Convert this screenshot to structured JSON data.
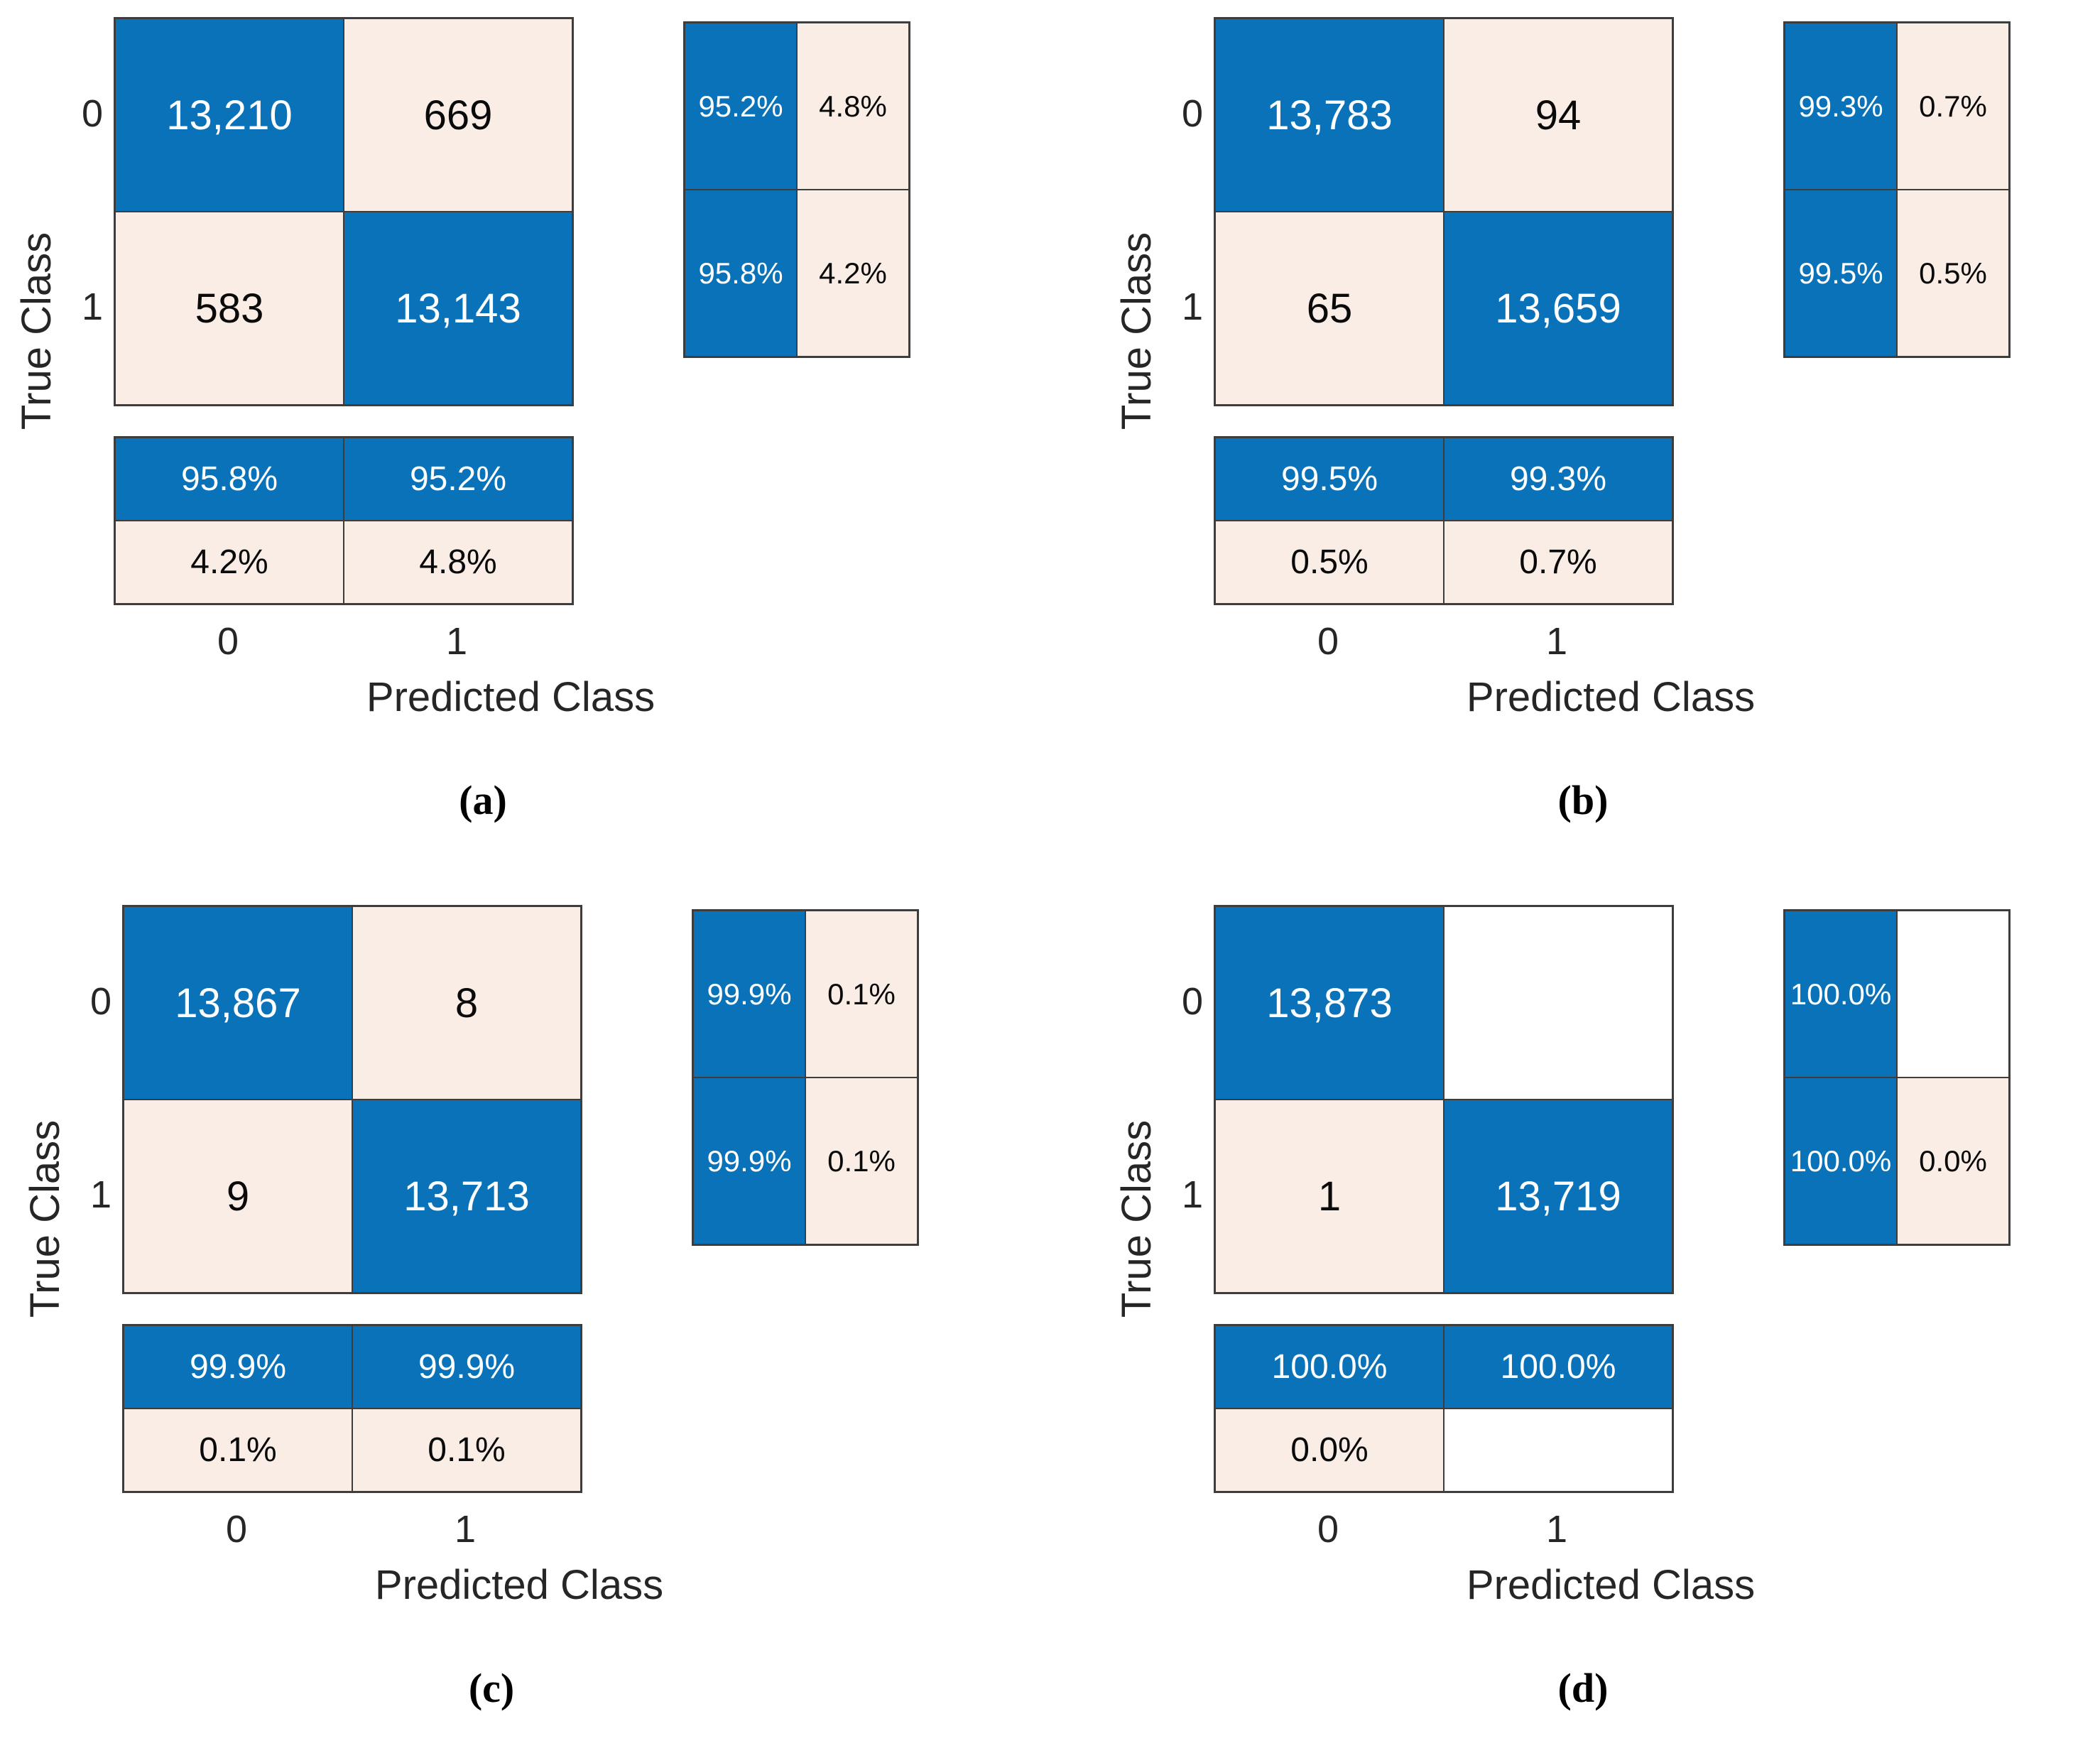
{
  "colors": {
    "diagonal_blue": "#0972b8",
    "offdiagonal_cream": "#faede6",
    "zero_cell_white": "#ffffff",
    "grid_border": "#3d3d3d",
    "label_text": "#262626"
  },
  "axis": {
    "x_label": "Predicted Class",
    "y_label": "True Class",
    "tick0": "0",
    "tick1": "1"
  },
  "panels": {
    "a": {
      "caption": "(a)",
      "matrix": [
        [
          {
            "v": "13,210",
            "c": "blue"
          },
          {
            "v": "669",
            "c": "light"
          }
        ],
        [
          {
            "v": "583",
            "c": "light"
          },
          {
            "v": "13,143",
            "c": "blue"
          }
        ]
      ],
      "rsum": [
        [
          {
            "v": "95.2%",
            "c": "blue"
          },
          {
            "v": "4.8%",
            "c": "light"
          }
        ],
        [
          {
            "v": "95.8%",
            "c": "blue"
          },
          {
            "v": "4.2%",
            "c": "light"
          }
        ]
      ],
      "csum": [
        [
          {
            "v": "95.8%",
            "c": "blue"
          },
          {
            "v": "95.2%",
            "c": "blue"
          }
        ],
        [
          {
            "v": "4.2%",
            "c": "light"
          },
          {
            "v": "4.8%",
            "c": "light"
          }
        ]
      ]
    },
    "b": {
      "caption": "(b)",
      "matrix": [
        [
          {
            "v": "13,783",
            "c": "blue"
          },
          {
            "v": "94",
            "c": "light"
          }
        ],
        [
          {
            "v": "65",
            "c": "light"
          },
          {
            "v": "13,659",
            "c": "blue"
          }
        ]
      ],
      "rsum": [
        [
          {
            "v": "99.3%",
            "c": "blue"
          },
          {
            "v": "0.7%",
            "c": "light"
          }
        ],
        [
          {
            "v": "99.5%",
            "c": "blue"
          },
          {
            "v": "0.5%",
            "c": "light"
          }
        ]
      ],
      "csum": [
        [
          {
            "v": "99.5%",
            "c": "blue"
          },
          {
            "v": "99.3%",
            "c": "blue"
          }
        ],
        [
          {
            "v": "0.5%",
            "c": "light"
          },
          {
            "v": "0.7%",
            "c": "light"
          }
        ]
      ]
    },
    "c": {
      "caption": "(c)",
      "matrix": [
        [
          {
            "v": "13,867",
            "c": "blue"
          },
          {
            "v": "8",
            "c": "light"
          }
        ],
        [
          {
            "v": "9",
            "c": "light"
          },
          {
            "v": "13,713",
            "c": "blue"
          }
        ]
      ],
      "rsum": [
        [
          {
            "v": "99.9%",
            "c": "blue"
          },
          {
            "v": "0.1%",
            "c": "light"
          }
        ],
        [
          {
            "v": "99.9%",
            "c": "blue"
          },
          {
            "v": "0.1%",
            "c": "light"
          }
        ]
      ],
      "csum": [
        [
          {
            "v": "99.9%",
            "c": "blue"
          },
          {
            "v": "99.9%",
            "c": "blue"
          }
        ],
        [
          {
            "v": "0.1%",
            "c": "light"
          },
          {
            "v": "0.1%",
            "c": "light"
          }
        ]
      ]
    },
    "d": {
      "caption": "(d)",
      "matrix": [
        [
          {
            "v": "13,873",
            "c": "blue"
          },
          {
            "v": "",
            "c": "white"
          }
        ],
        [
          {
            "v": "1",
            "c": "light"
          },
          {
            "v": "13,719",
            "c": "blue"
          }
        ]
      ],
      "rsum": [
        [
          {
            "v": "100.0%",
            "c": "blue"
          },
          {
            "v": "",
            "c": "white"
          }
        ],
        [
          {
            "v": "100.0%",
            "c": "blue"
          },
          {
            "v": "0.0%",
            "c": "light"
          }
        ]
      ],
      "csum": [
        [
          {
            "v": "100.0%",
            "c": "blue"
          },
          {
            "v": "100.0%",
            "c": "blue"
          }
        ],
        [
          {
            "v": "0.0%",
            "c": "light"
          },
          {
            "v": "",
            "c": "white"
          }
        ]
      ]
    }
  },
  "chart_data": [
    {
      "type": "heatmap",
      "subfigure": "(a)",
      "classes": [
        "0",
        "1"
      ],
      "xlabel": "Predicted Class",
      "ylabel": "True Class",
      "matrix_counts": [
        [
          13210,
          669
        ],
        [
          583,
          13143
        ]
      ],
      "row_summary_percent": [
        [
          95.2,
          4.8
        ],
        [
          95.8,
          4.2
        ]
      ],
      "column_summary_percent": [
        [
          95.8,
          95.2
        ],
        [
          4.2,
          4.8
        ]
      ],
      "layout": "row summary panel at right, column summary panel at bottom, grid on"
    },
    {
      "type": "heatmap",
      "subfigure": "(b)",
      "classes": [
        "0",
        "1"
      ],
      "xlabel": "Predicted Class",
      "ylabel": "True Class",
      "matrix_counts": [
        [
          13783,
          94
        ],
        [
          65,
          13659
        ]
      ],
      "row_summary_percent": [
        [
          99.3,
          0.7
        ],
        [
          99.5,
          0.5
        ]
      ],
      "column_summary_percent": [
        [
          99.5,
          99.3
        ],
        [
          0.5,
          0.7
        ]
      ],
      "layout": "row summary panel at right, column summary panel at bottom, grid on"
    },
    {
      "type": "heatmap",
      "subfigure": "(c)",
      "classes": [
        "0",
        "1"
      ],
      "xlabel": "Predicted Class",
      "ylabel": "True Class",
      "matrix_counts": [
        [
          13867,
          8
        ],
        [
          9,
          13713
        ]
      ],
      "row_summary_percent": [
        [
          99.9,
          0.1
        ],
        [
          99.9,
          0.1
        ]
      ],
      "column_summary_percent": [
        [
          99.9,
          99.9
        ],
        [
          0.1,
          0.1
        ]
      ],
      "layout": "row summary panel at right, column summary panel at bottom, grid on"
    },
    {
      "type": "heatmap",
      "subfigure": "(d)",
      "classes": [
        "0",
        "1"
      ],
      "xlabel": "Predicted Class",
      "ylabel": "True Class",
      "matrix_counts": [
        [
          13873,
          0
        ],
        [
          1,
          13719
        ]
      ],
      "row_summary_percent": [
        [
          100.0,
          null
        ],
        [
          100.0,
          0.0
        ]
      ],
      "column_summary_percent": [
        [
          100.0,
          100.0
        ],
        [
          0.0,
          null
        ]
      ],
      "layout": "row summary panel at right, column summary panel at bottom, empty cells rendered white, grid on"
    }
  ]
}
